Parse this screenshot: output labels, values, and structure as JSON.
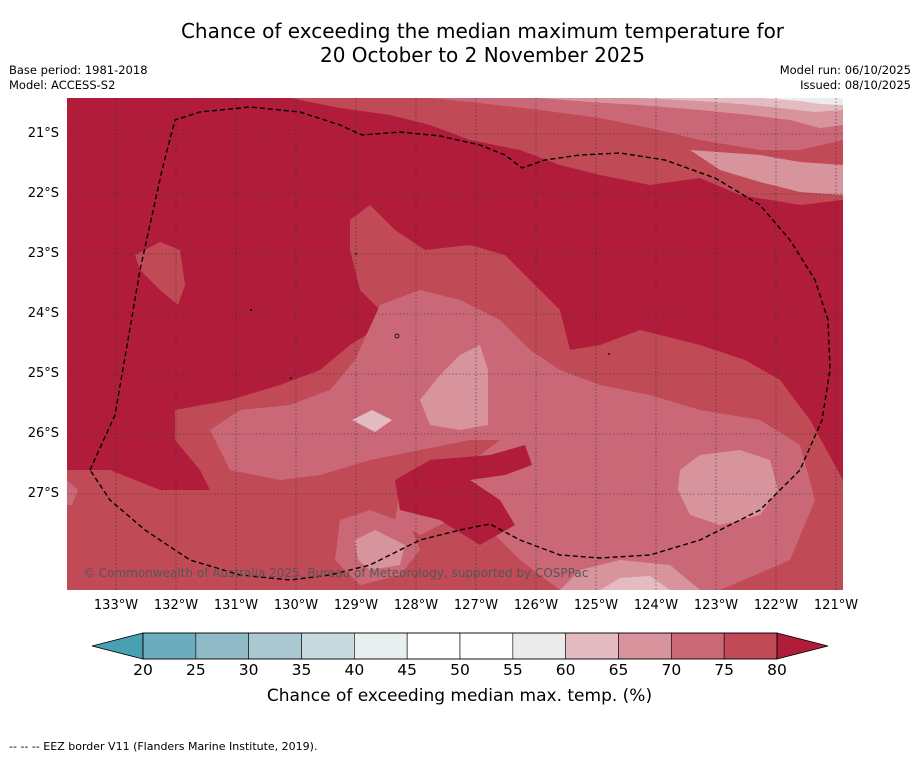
{
  "header": {
    "title_line1": "Chance of exceeding the median maximum temperature for",
    "title_line2": "20 October to 2 November 2025",
    "base_period": "Base period: 1981-2018",
    "model": "Model: ACCESS-S2",
    "model_run": "Model run: 06/10/2025",
    "issued": "Issued: 08/10/2025"
  },
  "map": {
    "latitude_labels": [
      "21°S",
      "22°S",
      "23°S",
      "24°S",
      "25°S",
      "26°S",
      "27°S"
    ],
    "longitude_labels": [
      "133°W",
      "132°W",
      "131°W",
      "130°W",
      "129°W",
      "128°W",
      "127°W",
      "126°W",
      "125°W",
      "124°W",
      "123°W",
      "122°W",
      "121°W"
    ],
    "copyright": "© Commonwealth of Australia 2025, Bureau of Meteorology, supported by COSPPac",
    "colors": {
      "band_75_80": "#c14a57",
      "band_80_plus": "#b11c3a",
      "band_70_75": "#cb6878",
      "band_65_70": "#d8949c",
      "band_60_65": "#e4bbc0",
      "band_55_60": "#ececee"
    }
  },
  "colorbar": {
    "ticks": [
      "20",
      "25",
      "30",
      "35",
      "40",
      "45",
      "50",
      "55",
      "60",
      "65",
      "70",
      "75",
      "80"
    ],
    "colors": [
      "#6badbd",
      "#8fbac6",
      "#a9c8cf",
      "#c9dadf",
      "#e9eff1",
      "#ffffff",
      "#ffffff",
      "#ebebec",
      "#e4bbc0",
      "#d8949c",
      "#cb6878",
      "#c14a57"
    ],
    "under_color": "#49a0b1",
    "over_color": "#b11c3a",
    "label": "Chance of exceeding median max. temp. (%)"
  },
  "footer": {
    "legend_text": "-- -- -- EEZ border V11 (Flanders Marine Institute, 2019)."
  }
}
